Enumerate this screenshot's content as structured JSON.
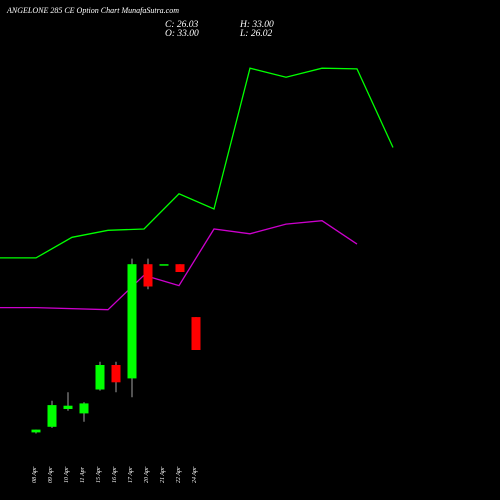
{
  "title": "ANGELONE 285 CE Option  Chart MunafaSutra.com",
  "ohlc": {
    "c": "C: 26.03",
    "o": "O: 33.00",
    "h": "H: 33.00",
    "l": "L: 26.02"
  },
  "colors": {
    "bg": "#000000",
    "up": "#00ff00",
    "down": "#ff0000",
    "upper_band": "#00ff00",
    "lower_band": "#cc00cc",
    "text": "#ffffff"
  },
  "chart_data": {
    "type": "candlestick",
    "title": "ANGELONE 285 CE Option  Chart MunafaSutra.com",
    "categories": [
      "08 Apr",
      "09 Apr",
      "10 Apr",
      "11 Apr",
      "15 Apr",
      "16 Apr",
      "17 Apr",
      "20 Apr",
      "21 Apr",
      "22 Apr",
      "24 Apr"
    ],
    "candles": [
      {
        "date": "08 Apr",
        "open": 2.8,
        "high": 3.3,
        "low": 2.6,
        "close": 3.3
      },
      {
        "date": "09 Apr",
        "open": 3.8,
        "high": 8.5,
        "low": 3.6,
        "close": 7.7
      },
      {
        "date": "10 Apr",
        "open": 7.0,
        "high": 10.0,
        "low": 6.7,
        "close": 7.6
      },
      {
        "date": "11 Apr",
        "open": 6.2,
        "high": 8.2,
        "low": 4.7,
        "close": 8.0
      },
      {
        "date": "15 Apr",
        "open": 10.5,
        "high": 15.5,
        "low": 10.3,
        "close": 14.9
      },
      {
        "date": "16 Apr",
        "open": 14.9,
        "high": 15.5,
        "low": 10.0,
        "close": 11.8
      },
      {
        "date": "17 Apr",
        "open": 12.5,
        "high": 34.0,
        "low": 9.1,
        "close": 33.0
      },
      {
        "date": "20 Apr",
        "open": 33.0,
        "high": 34.0,
        "low": 28.5,
        "close": 29.0
      },
      {
        "date": "21 Apr",
        "open": 33.0,
        "high": 33.0,
        "low": 33.0,
        "close": 33.0
      },
      {
        "date": "22 Apr",
        "open": 33.0,
        "high": 33.0,
        "low": 31.6,
        "close": 31.6
      },
      {
        "date": "24 Apr",
        "open": 23.5,
        "high": 23.5,
        "low": 17.6,
        "close": 17.6
      }
    ],
    "upper_band": [
      {
        "date": "start",
        "value": 44.5
      },
      {
        "date": "09 Apr",
        "value": 44.5
      },
      {
        "date": "11 Apr",
        "value": 47.5
      },
      {
        "date": "16 Apr",
        "value": 48.5
      },
      {
        "date": "17 Apr",
        "value": 48.7
      },
      {
        "date": "20 Apr",
        "value": 53.8
      },
      {
        "date": "21 Apr",
        "value": 51.6
      },
      {
        "date": "22 Apr",
        "value": 72.0
      },
      {
        "date": "24 Apr",
        "value": 70.7
      },
      {
        "date": "end1",
        "value": 72.0
      },
      {
        "date": "end2",
        "value": 71.9
      },
      {
        "date": "end3",
        "value": 60.5
      }
    ],
    "lower_band": [
      {
        "date": "start",
        "value": 37.3
      },
      {
        "date": "09 Apr",
        "value": 37.3
      },
      {
        "date": "16 Apr",
        "value": 37.0
      },
      {
        "date": "17 Apr",
        "value": 42.0
      },
      {
        "date": "20 Apr",
        "value": 40.5
      },
      {
        "date": "21 Apr",
        "value": 48.7
      },
      {
        "date": "22 Apr",
        "value": 48.0
      },
      {
        "date": "24 Apr",
        "value": 49.4
      },
      {
        "date": "end1",
        "value": 49.9
      },
      {
        "date": "end2",
        "value": 46.5
      }
    ],
    "grid": false
  }
}
